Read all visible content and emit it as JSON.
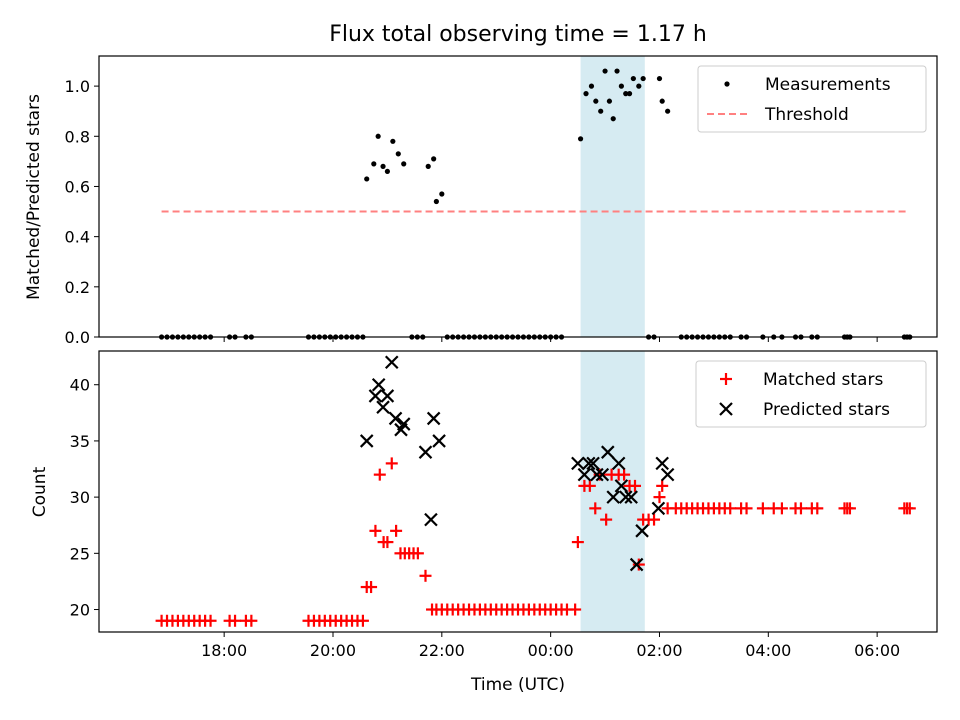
{
  "figure_title": "Flux total observing time = 1.17 h",
  "chart_data": [
    {
      "type": "scatter",
      "panel": "top",
      "ylabel": "Matched/Predicted stars",
      "xlabel": "",
      "x_unit": "hours (time axis continues past midnight; values >= 24 are next-day times)",
      "xlim": [
        15.7,
        31.1
      ],
      "ylim": [
        0.0,
        1.12
      ],
      "yticks": [
        0.0,
        0.2,
        0.4,
        0.6,
        0.8,
        1.0
      ],
      "ytick_labels": [
        "0.0",
        "0.2",
        "0.4",
        "0.6",
        "0.8",
        "1.0"
      ],
      "grid": false,
      "legend_position": "top-right",
      "highlight_span": {
        "x0": 24.55,
        "x1": 25.73,
        "color": "#add8e6"
      },
      "series": [
        {
          "name": "Measurements",
          "marker": "dot",
          "color": "#000000",
          "points": [
            [
              16.85,
              0
            ],
            [
              16.95,
              0
            ],
            [
              17.05,
              0
            ],
            [
              17.15,
              0
            ],
            [
              17.25,
              0
            ],
            [
              17.35,
              0
            ],
            [
              17.45,
              0
            ],
            [
              17.55,
              0
            ],
            [
              17.65,
              0
            ],
            [
              17.75,
              0
            ],
            [
              18.1,
              0
            ],
            [
              18.2,
              0
            ],
            [
              18.4,
              0
            ],
            [
              18.5,
              0
            ],
            [
              19.55,
              0
            ],
            [
              19.65,
              0
            ],
            [
              19.75,
              0
            ],
            [
              19.85,
              0
            ],
            [
              19.95,
              0
            ],
            [
              20.05,
              0
            ],
            [
              20.15,
              0
            ],
            [
              20.25,
              0
            ],
            [
              20.35,
              0
            ],
            [
              20.45,
              0
            ],
            [
              20.55,
              0
            ],
            [
              20.62,
              0.63
            ],
            [
              20.75,
              0.69
            ],
            [
              20.83,
              0.8
            ],
            [
              20.92,
              0.68
            ],
            [
              21.0,
              0.66
            ],
            [
              21.1,
              0.78
            ],
            [
              21.2,
              0.73
            ],
            [
              21.3,
              0.69
            ],
            [
              21.45,
              0
            ],
            [
              21.55,
              0
            ],
            [
              21.65,
              0
            ],
            [
              21.75,
              0.68
            ],
            [
              21.85,
              0.71
            ],
            [
              21.9,
              0.54
            ],
            [
              22.0,
              0.57
            ],
            [
              22.1,
              0
            ],
            [
              22.2,
              0
            ],
            [
              22.3,
              0
            ],
            [
              22.4,
              0
            ],
            [
              22.5,
              0
            ],
            [
              22.6,
              0
            ],
            [
              22.7,
              0
            ],
            [
              22.8,
              0
            ],
            [
              22.9,
              0
            ],
            [
              23.0,
              0
            ],
            [
              23.1,
              0
            ],
            [
              23.2,
              0
            ],
            [
              23.3,
              0
            ],
            [
              23.4,
              0
            ],
            [
              23.5,
              0
            ],
            [
              23.6,
              0
            ],
            [
              23.7,
              0
            ],
            [
              23.8,
              0
            ],
            [
              23.9,
              0
            ],
            [
              24.0,
              0
            ],
            [
              24.1,
              0
            ],
            [
              24.2,
              0
            ],
            [
              24.55,
              0.79
            ],
            [
              24.65,
              0.97
            ],
            [
              24.75,
              1.0
            ],
            [
              24.83,
              0.94
            ],
            [
              24.92,
              0.9
            ],
            [
              25.0,
              1.06
            ],
            [
              25.08,
              0.94
            ],
            [
              25.15,
              0.87
            ],
            [
              25.22,
              1.06
            ],
            [
              25.3,
              1.0
            ],
            [
              25.38,
              0.97
            ],
            [
              25.45,
              0.97
            ],
            [
              25.52,
              1.03
            ],
            [
              25.62,
              1.0
            ],
            [
              25.7,
              1.03
            ],
            [
              25.8,
              0
            ],
            [
              25.9,
              0
            ],
            [
              26.0,
              1.03
            ],
            [
              26.05,
              0.94
            ],
            [
              26.15,
              0.9
            ],
            [
              26.4,
              0
            ],
            [
              26.5,
              0
            ],
            [
              26.6,
              0
            ],
            [
              26.7,
              0
            ],
            [
              26.8,
              0
            ],
            [
              26.9,
              0
            ],
            [
              27.0,
              0
            ],
            [
              27.1,
              0
            ],
            [
              27.2,
              0
            ],
            [
              27.3,
              0
            ],
            [
              27.5,
              0
            ],
            [
              27.6,
              0
            ],
            [
              27.9,
              0
            ],
            [
              28.1,
              0
            ],
            [
              28.25,
              0
            ],
            [
              28.5,
              0
            ],
            [
              28.6,
              0
            ],
            [
              28.8,
              0
            ],
            [
              28.9,
              0
            ],
            [
              29.4,
              0
            ],
            [
              29.45,
              0
            ],
            [
              29.5,
              0
            ],
            [
              30.5,
              0
            ],
            [
              30.55,
              0
            ],
            [
              30.6,
              0
            ]
          ]
        },
        {
          "name": "Threshold",
          "marker": "dashed-line",
          "color": "#ff8080",
          "points": [
            [
              16.85,
              0.5
            ],
            [
              30.55,
              0.5
            ]
          ]
        }
      ]
    },
    {
      "type": "scatter",
      "panel": "bottom",
      "ylabel": "Count",
      "xlabel": "Time (UTC)",
      "x_unit": "hours (time axis continues past midnight; values >= 24 are next-day times)",
      "xlim": [
        15.7,
        31.1
      ],
      "ylim": [
        18.0,
        43.0
      ],
      "yticks": [
        20,
        25,
        30,
        35,
        40
      ],
      "ytick_labels": [
        "20",
        "25",
        "30",
        "35",
        "40"
      ],
      "xticks": [
        18,
        20,
        22,
        24,
        26,
        28,
        30
      ],
      "xtick_labels": [
        "18:00",
        "20:00",
        "22:00",
        "00:00",
        "02:00",
        "04:00",
        "06:00"
      ],
      "grid": false,
      "legend_position": "top-right",
      "highlight_span": {
        "x0": 24.55,
        "x1": 25.73,
        "color": "#add8e6"
      },
      "series": [
        {
          "name": "Matched stars",
          "marker": "plus",
          "color": "#ff0000",
          "points": [
            [
              16.85,
              19
            ],
            [
              16.95,
              19
            ],
            [
              17.05,
              19
            ],
            [
              17.15,
              19
            ],
            [
              17.25,
              19
            ],
            [
              17.35,
              19
            ],
            [
              17.45,
              19
            ],
            [
              17.55,
              19
            ],
            [
              17.65,
              19
            ],
            [
              17.75,
              19
            ],
            [
              18.1,
              19
            ],
            [
              18.2,
              19
            ],
            [
              18.4,
              19
            ],
            [
              18.5,
              19
            ],
            [
              19.55,
              19
            ],
            [
              19.65,
              19
            ],
            [
              19.75,
              19
            ],
            [
              19.85,
              19
            ],
            [
              19.95,
              19
            ],
            [
              20.05,
              19
            ],
            [
              20.15,
              19
            ],
            [
              20.25,
              19
            ],
            [
              20.35,
              19
            ],
            [
              20.45,
              19
            ],
            [
              20.55,
              19
            ],
            [
              20.62,
              22
            ],
            [
              20.7,
              22
            ],
            [
              20.78,
              27
            ],
            [
              20.86,
              32
            ],
            [
              20.93,
              26
            ],
            [
              21.0,
              26
            ],
            [
              21.08,
              33
            ],
            [
              21.16,
              27
            ],
            [
              21.24,
              25
            ],
            [
              21.32,
              25
            ],
            [
              21.4,
              25
            ],
            [
              21.48,
              25
            ],
            [
              21.56,
              25
            ],
            [
              21.7,
              23
            ],
            [
              21.82,
              20
            ],
            [
              21.9,
              20
            ],
            [
              22.0,
              20
            ],
            [
              22.1,
              20
            ],
            [
              22.2,
              20
            ],
            [
              22.3,
              20
            ],
            [
              22.4,
              20
            ],
            [
              22.5,
              20
            ],
            [
              22.6,
              20
            ],
            [
              22.7,
              20
            ],
            [
              22.8,
              20
            ],
            [
              22.9,
              20
            ],
            [
              23.0,
              20
            ],
            [
              23.1,
              20
            ],
            [
              23.2,
              20
            ],
            [
              23.3,
              20
            ],
            [
              23.4,
              20
            ],
            [
              23.5,
              20
            ],
            [
              23.6,
              20
            ],
            [
              23.7,
              20
            ],
            [
              23.8,
              20
            ],
            [
              23.9,
              20
            ],
            [
              24.0,
              20
            ],
            [
              24.1,
              20
            ],
            [
              24.2,
              20
            ],
            [
              24.3,
              20
            ],
            [
              24.45,
              20
            ],
            [
              24.5,
              26
            ],
            [
              24.62,
              31
            ],
            [
              24.72,
              31
            ],
            [
              24.82,
              29
            ],
            [
              24.9,
              32
            ],
            [
              25.02,
              28
            ],
            [
              25.12,
              32
            ],
            [
              25.25,
              32
            ],
            [
              25.35,
              32
            ],
            [
              25.45,
              31
            ],
            [
              25.55,
              31
            ],
            [
              25.62,
              24
            ],
            [
              25.7,
              28
            ],
            [
              25.8,
              28
            ],
            [
              25.9,
              28
            ],
            [
              26.0,
              30
            ],
            [
              26.05,
              31
            ],
            [
              26.15,
              29
            ],
            [
              26.3,
              29
            ],
            [
              26.4,
              29
            ],
            [
              26.5,
              29
            ],
            [
              26.6,
              29
            ],
            [
              26.7,
              29
            ],
            [
              26.8,
              29
            ],
            [
              26.9,
              29
            ],
            [
              27.0,
              29
            ],
            [
              27.1,
              29
            ],
            [
              27.2,
              29
            ],
            [
              27.3,
              29
            ],
            [
              27.5,
              29
            ],
            [
              27.6,
              29
            ],
            [
              27.9,
              29
            ],
            [
              28.1,
              29
            ],
            [
              28.25,
              29
            ],
            [
              28.5,
              29
            ],
            [
              28.6,
              29
            ],
            [
              28.8,
              29
            ],
            [
              28.9,
              29
            ],
            [
              29.4,
              29
            ],
            [
              29.45,
              29
            ],
            [
              29.5,
              29
            ],
            [
              30.5,
              29
            ],
            [
              30.55,
              29
            ],
            [
              30.6,
              29
            ]
          ]
        },
        {
          "name": "Predicted stars",
          "marker": "x",
          "color": "#000000",
          "points": [
            [
              20.62,
              35
            ],
            [
              20.78,
              39
            ],
            [
              20.84,
              40
            ],
            [
              20.92,
              38
            ],
            [
              21.0,
              39
            ],
            [
              21.08,
              42
            ],
            [
              21.15,
              37
            ],
            [
              21.25,
              36
            ],
            [
              21.3,
              36.5
            ],
            [
              21.7,
              34
            ],
            [
              21.8,
              28
            ],
            [
              21.85,
              37
            ],
            [
              21.95,
              35
            ],
            [
              24.5,
              33
            ],
            [
              24.62,
              32
            ],
            [
              24.7,
              33
            ],
            [
              24.78,
              33
            ],
            [
              24.85,
              32
            ],
            [
              24.95,
              32
            ],
            [
              25.05,
              34
            ],
            [
              25.15,
              30
            ],
            [
              25.25,
              33
            ],
            [
              25.3,
              31
            ],
            [
              25.38,
              30
            ],
            [
              25.48,
              30
            ],
            [
              25.58,
              24
            ],
            [
              25.68,
              27
            ],
            [
              25.98,
              29
            ],
            [
              26.05,
              33
            ],
            [
              26.15,
              32
            ]
          ]
        }
      ]
    }
  ]
}
